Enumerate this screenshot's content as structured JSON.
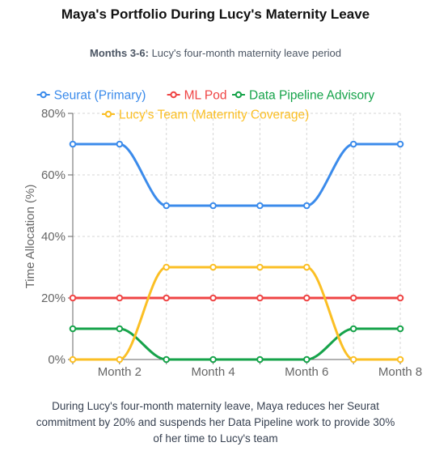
{
  "header": {
    "title": "Maya's Portfolio During Lucy's Maternity Leave",
    "subtitle_bold": "Months 3-6:",
    "subtitle_text": " Lucy's four-month maternity leave period"
  },
  "caption": "During Lucy's four-month maternity leave, Maya reduces her Seurat commitment by 20% and suspends her Data Pipeline work to provide 30% of her time to Lucy's team",
  "chart_data": {
    "type": "line",
    "title": "Maya's Portfolio During Lucy's Maternity Leave",
    "xlabel": "",
    "ylabel": "Time Allocation (%)",
    "x": [
      1,
      2,
      3,
      4,
      5,
      6,
      7,
      8
    ],
    "x_tick_values": [
      2,
      4,
      6,
      8
    ],
    "x_tick_labels": [
      "Month 2",
      "Month 4",
      "Month 6",
      "Month 8"
    ],
    "xlim": [
      1,
      8
    ],
    "ylim": [
      0,
      80
    ],
    "y_ticks": [
      0,
      20,
      40,
      60,
      80
    ],
    "y_tick_labels": [
      "0%",
      "20%",
      "40%",
      "60%",
      "80%"
    ],
    "grid": true,
    "legend_position": "top",
    "series": [
      {
        "name": "Seurat (Primary)",
        "color": "#3b8beb",
        "values": [
          70,
          70,
          50,
          50,
          50,
          50,
          70,
          70
        ]
      },
      {
        "name": "ML Pod",
        "color": "#ef4444",
        "values": [
          20,
          20,
          20,
          20,
          20,
          20,
          20,
          20
        ]
      },
      {
        "name": "Data Pipeline Advisory",
        "color": "#16a34a",
        "values": [
          10,
          10,
          0,
          0,
          0,
          0,
          10,
          10
        ]
      },
      {
        "name": "Lucy's Team (Maternity Coverage)",
        "color": "#fbbf24",
        "values": [
          0,
          0,
          30,
          30,
          30,
          30,
          0,
          0
        ]
      }
    ]
  }
}
